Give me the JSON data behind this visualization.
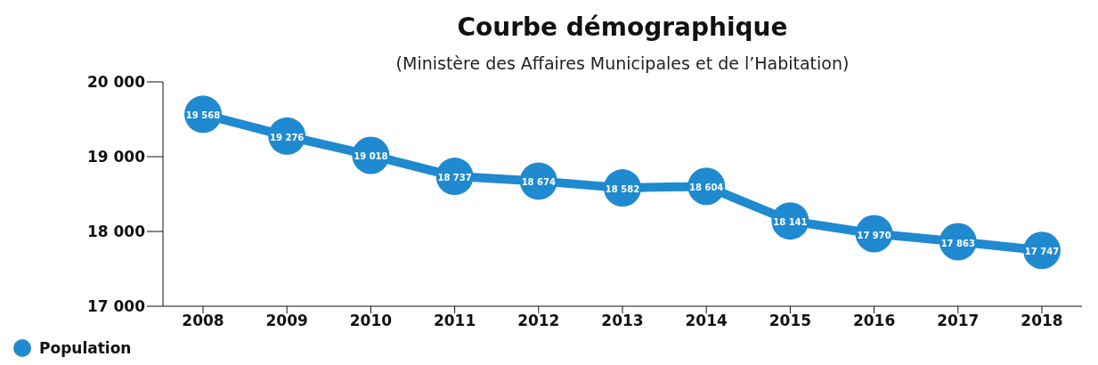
{
  "chart_data": {
    "type": "line",
    "title": "Courbe démographique",
    "subtitle": "(Ministère des Affaires Municipales et de l’Habitation)",
    "categories": [
      "2008",
      "2009",
      "2010",
      "2011",
      "2012",
      "2013",
      "2014",
      "2015",
      "2016",
      "2017",
      "2018"
    ],
    "series": [
      {
        "name": "Population",
        "color": "#1f8ad0",
        "values": [
          19568,
          19276,
          19018,
          18737,
          18674,
          18582,
          18604,
          18141,
          17970,
          17863,
          17747
        ],
        "value_labels": [
          "19 568",
          "19 276",
          "19 018",
          "18 737",
          "18 674",
          "18 582",
          "18 604",
          "18 141",
          "17 970",
          "17 863",
          "17 747"
        ]
      }
    ],
    "ylim": [
      17000,
      20000
    ],
    "yticks": [
      {
        "value": 17000,
        "label": "17 000"
      },
      {
        "value": 18000,
        "label": "18 000"
      },
      {
        "value": 19000,
        "label": "19 000"
      },
      {
        "value": 20000,
        "label": "20 000"
      }
    ],
    "legend": "bottom left",
    "marker": "circle"
  }
}
